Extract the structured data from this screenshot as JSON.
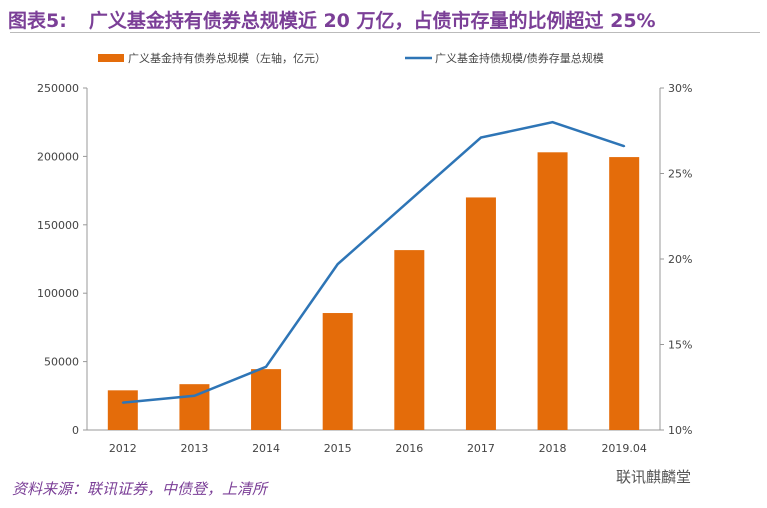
{
  "title": {
    "label": "图表5:",
    "text": "广义基金持有债券总规模近 20 万亿，占债市存量的比例超过 25%"
  },
  "source": "资料来源：联讯证券，中债登，上清所",
  "watermark": "联讯麒麟堂",
  "chart_data": {
    "type": "bar+line",
    "categories": [
      "2012",
      "2013",
      "2014",
      "2015",
      "2016",
      "2017",
      "2018",
      "2019.04"
    ],
    "series": [
      {
        "name": "广义基金持有债券总规模（左轴，亿元）",
        "type": "bar",
        "axis": "left",
        "color": "#e46c0a",
        "values": [
          29000,
          33500,
          44500,
          85500,
          131500,
          170000,
          203000,
          199500
        ]
      },
      {
        "name": "广义基金持债规模/债券存量总规模",
        "type": "line",
        "axis": "right",
        "color": "#2e75b6",
        "values": [
          11.6,
          12.0,
          13.7,
          19.7,
          23.4,
          27.1,
          28.0,
          26.6
        ]
      }
    ],
    "left_axis": {
      "range": [
        0,
        250000
      ],
      "ticks": [
        "0",
        "50000",
        "100000",
        "150000",
        "200000",
        "250000"
      ]
    },
    "right_axis": {
      "range": [
        10,
        30
      ],
      "ticks": [
        "10%",
        "15%",
        "20%",
        "25%",
        "30%"
      ]
    },
    "legend": "top",
    "grid": false
  }
}
